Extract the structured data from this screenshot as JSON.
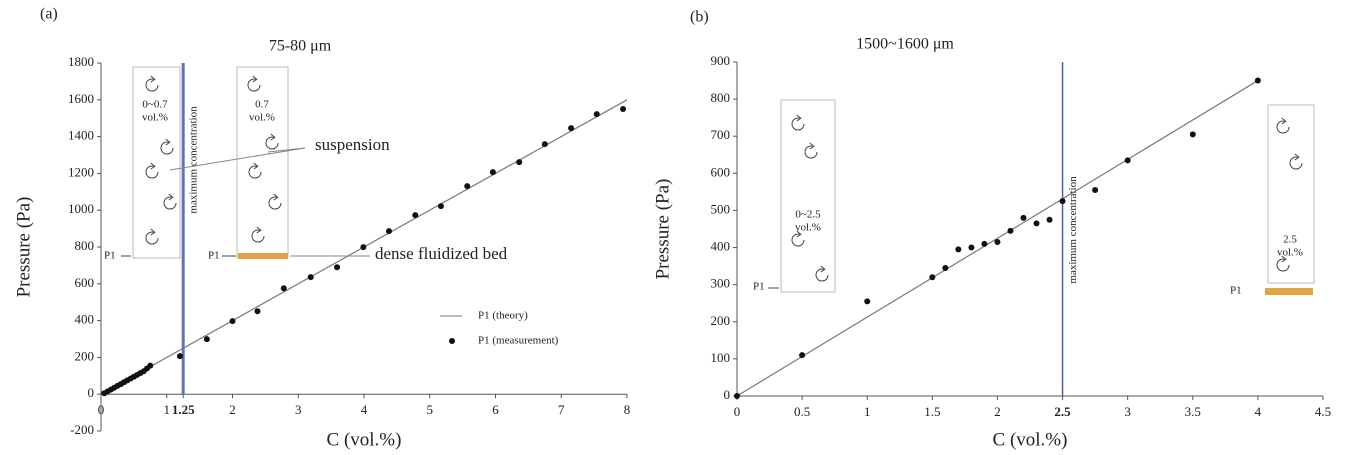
{
  "chart_data": [
    {
      "type": "scatter",
      "panel_label": "(a)",
      "title": "75-80 μm",
      "xlabel": "C (vol.%)",
      "ylabel": "Pressure  (Pa)",
      "xlim": [
        0,
        8
      ],
      "ylim": [
        -200,
        1800
      ],
      "xticks": [
        0,
        1,
        1.25,
        2,
        3,
        4,
        5,
        6,
        7,
        8
      ],
      "yticks": [
        -200,
        0,
        200,
        400,
        600,
        800,
        1000,
        1200,
        1400,
        1600,
        1800
      ],
      "legend": "lower right",
      "vline": {
        "value": 1.25,
        "label": "maximum concentration",
        "color": "#6272b8"
      },
      "bed_color": "#e3a445",
      "annotations": [
        "0~0.7",
        "vol.%",
        "0.7",
        "vol.%",
        "suspension",
        "dense fluidized bed",
        "P1",
        "P1"
      ],
      "series": [
        {
          "name": "P1 (theory)",
          "type": "line",
          "color": "#777777",
          "x": [
            0,
            8
          ],
          "values": [
            0,
            1600
          ]
        },
        {
          "name": "P1 (measurement)",
          "type": "scatter",
          "color": "#111111",
          "x": [
            0.05,
            0.1,
            0.15,
            0.2,
            0.25,
            0.3,
            0.35,
            0.4,
            0.45,
            0.5,
            0.55,
            0.6,
            0.65,
            0.7,
            0.75,
            1.2,
            1.61,
            2.0,
            2.38,
            2.78,
            3.19,
            3.59,
            3.99,
            4.38,
            4.78,
            5.17,
            5.57,
            5.96,
            6.36,
            6.75,
            7.15,
            7.54,
            7.94
          ],
          "values": [
            5,
            15,
            25,
            35,
            45,
            55,
            65,
            75,
            85,
            95,
            105,
            115,
            125,
            140,
            155,
            207,
            299,
            397,
            451,
            576,
            636,
            690,
            799,
            886,
            973,
            1022,
            1131,
            1207,
            1261,
            1359,
            1446,
            1522,
            1550
          ]
        }
      ]
    },
    {
      "type": "scatter",
      "panel_label": "(b)",
      "title": "1500~1600 μm",
      "xlabel": "C (vol.%)",
      "ylabel": "Pressure  (Pa)",
      "xlim": [
        0,
        4.5
      ],
      "ylim": [
        0,
        900
      ],
      "xticks": [
        0,
        0.5,
        1,
        1.5,
        2,
        2.5,
        3,
        3.5,
        4,
        4.5
      ],
      "yticks": [
        0,
        100,
        200,
        300,
        400,
        500,
        600,
        700,
        800,
        900
      ],
      "vline": {
        "value": 2.5,
        "label": "maximum concentration",
        "color": "#4a5fb0"
      },
      "bed_color": "#e3a445",
      "annotations": [
        "0~2.5",
        "vol.%",
        "2.5",
        "vol.%",
        "P1",
        "P1"
      ],
      "series": [
        {
          "type": "line",
          "color": "#777777",
          "x": [
            0,
            4
          ],
          "values": [
            0,
            850
          ]
        },
        {
          "type": "scatter",
          "color": "#111111",
          "x": [
            0,
            0.5,
            1,
            1.5,
            1.6,
            1.7,
            1.8,
            1.9,
            2,
            2.1,
            2.2,
            2.3,
            2.4,
            2.5,
            2.75,
            3,
            3.5,
            4
          ],
          "values": [
            0,
            110,
            255,
            320,
            345,
            395,
            400,
            410,
            415,
            445,
            480,
            465,
            475,
            525,
            555,
            635,
            705,
            850
          ]
        }
      ]
    }
  ]
}
